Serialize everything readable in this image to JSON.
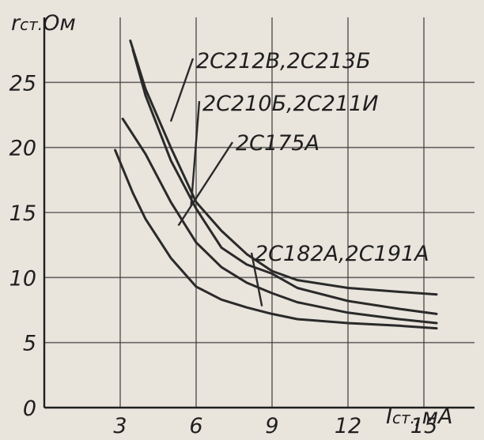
{
  "chart_data": {
    "type": "line",
    "ylabel_main": "r",
    "ylabel_sub": "ст.",
    "ylabel_unit": "Ом",
    "xlabel_main": "I",
    "xlabel_sub": "ст.",
    "xlabel_unit": "мА",
    "xlim": [
      0,
      17
    ],
    "ylim": [
      0,
      30
    ],
    "x_ticks": [
      "3",
      "6",
      "9",
      "12",
      "15"
    ],
    "y_ticks": [
      "0",
      "5",
      "10",
      "15",
      "20",
      "25"
    ],
    "series": [
      {
        "name": "2С212В,2С213Б",
        "label_anchor": [
          5.0,
          22.0
        ],
        "points": [
          [
            3.4,
            28.2
          ],
          [
            4,
            24.5
          ],
          [
            5,
            20
          ],
          [
            6,
            15.8
          ],
          [
            7,
            13.6
          ],
          [
            8,
            11.8
          ],
          [
            9,
            10.5
          ],
          [
            10,
            9.8
          ],
          [
            12,
            9.2
          ],
          [
            14,
            8.9
          ],
          [
            15.5,
            8.7
          ]
        ]
      },
      {
        "name": "2С210Б,2С211И",
        "label_anchor": [
          5.8,
          15.5
        ],
        "points": [
          [
            3.5,
            27.5
          ],
          [
            4,
            24
          ],
          [
            5,
            19
          ],
          [
            6,
            15.3
          ],
          [
            7,
            12.3
          ],
          [
            8,
            11
          ],
          [
            9,
            10.3
          ],
          [
            10,
            9.2
          ],
          [
            12,
            8.2
          ],
          [
            14,
            7.6
          ],
          [
            15.5,
            7.2
          ]
        ]
      },
      {
        "name": "2С175А",
        "label_anchor": [
          5.3,
          14.0
        ],
        "points": [
          [
            3.1,
            22.2
          ],
          [
            4,
            19.5
          ],
          [
            5,
            15.8
          ],
          [
            6,
            12.7
          ],
          [
            7,
            10.8
          ],
          [
            8,
            9.6
          ],
          [
            9,
            8.8
          ],
          [
            10,
            8.1
          ],
          [
            12,
            7.3
          ],
          [
            14,
            6.8
          ],
          [
            15.5,
            6.5
          ]
        ]
      },
      {
        "name": "2С182А,2С191А",
        "label_anchor": [
          8.6,
          7.8
        ],
        "points": [
          [
            2.8,
            19.8
          ],
          [
            3.5,
            16.5
          ],
          [
            4,
            14.5
          ],
          [
            5,
            11.5
          ],
          [
            6,
            9.3
          ],
          [
            7,
            8.3
          ],
          [
            8,
            7.7
          ],
          [
            9,
            7.2
          ],
          [
            10,
            6.8
          ],
          [
            12,
            6.5
          ],
          [
            14,
            6.3
          ],
          [
            15.5,
            6.1
          ]
        ]
      }
    ]
  }
}
